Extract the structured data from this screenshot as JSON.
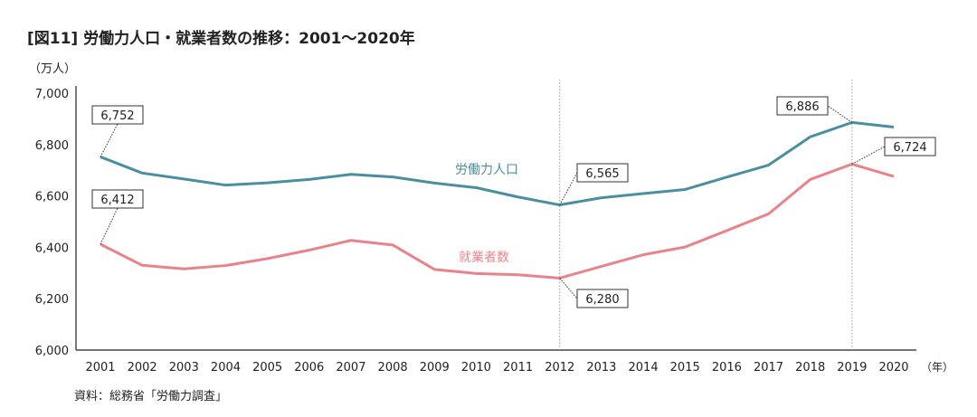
{
  "chart_data": {
    "type": "line",
    "title": "[図11] 労働力人口・就業者数の推移：2001〜2020年",
    "ylabel": "（万人）",
    "xlabel": "（年）",
    "source": "資料：総務省「労働力調査」",
    "ylim": [
      6000,
      7000
    ],
    "yticks": [
      6000,
      6200,
      6400,
      6600,
      6800,
      7000
    ],
    "ytick_labels": [
      "6,000",
      "6,200",
      "6,400",
      "6,600",
      "6,800",
      "7,000"
    ],
    "categories": [
      "2001",
      "2002",
      "2003",
      "2004",
      "2005",
      "2006",
      "2007",
      "2008",
      "2009",
      "2010",
      "2011",
      "2012",
      "2013",
      "2014",
      "2015",
      "2016",
      "2017",
      "2018",
      "2019",
      "2020"
    ],
    "grid": false,
    "reference_lines": [
      "2012",
      "2019"
    ],
    "series": [
      {
        "name": "労働力人口",
        "color": "#4a8fa0",
        "values": [
          6752,
          6689,
          6666,
          6642,
          6651,
          6664,
          6684,
          6674,
          6650,
          6632,
          6596,
          6565,
          6593,
          6609,
          6625,
          6673,
          6720,
          6830,
          6886,
          6868
        ]
      },
      {
        "name": "就業者数",
        "color": "#e8838a",
        "values": [
          6412,
          6330,
          6316,
          6329,
          6356,
          6389,
          6427,
          6409,
          6314,
          6298,
          6293,
          6280,
          6326,
          6371,
          6401,
          6465,
          6530,
          6664,
          6724,
          6676
        ]
      }
    ],
    "annotations": [
      {
        "series": 0,
        "year": "2001",
        "text": "6,752"
      },
      {
        "series": 1,
        "year": "2001",
        "text": "6,412"
      },
      {
        "series": 0,
        "year": "2012",
        "text": "6,565"
      },
      {
        "series": 1,
        "year": "2012",
        "text": "6,280"
      },
      {
        "series": 0,
        "year": "2019",
        "text": "6,886"
      },
      {
        "series": 1,
        "year": "2019",
        "text": "6,724"
      }
    ]
  }
}
